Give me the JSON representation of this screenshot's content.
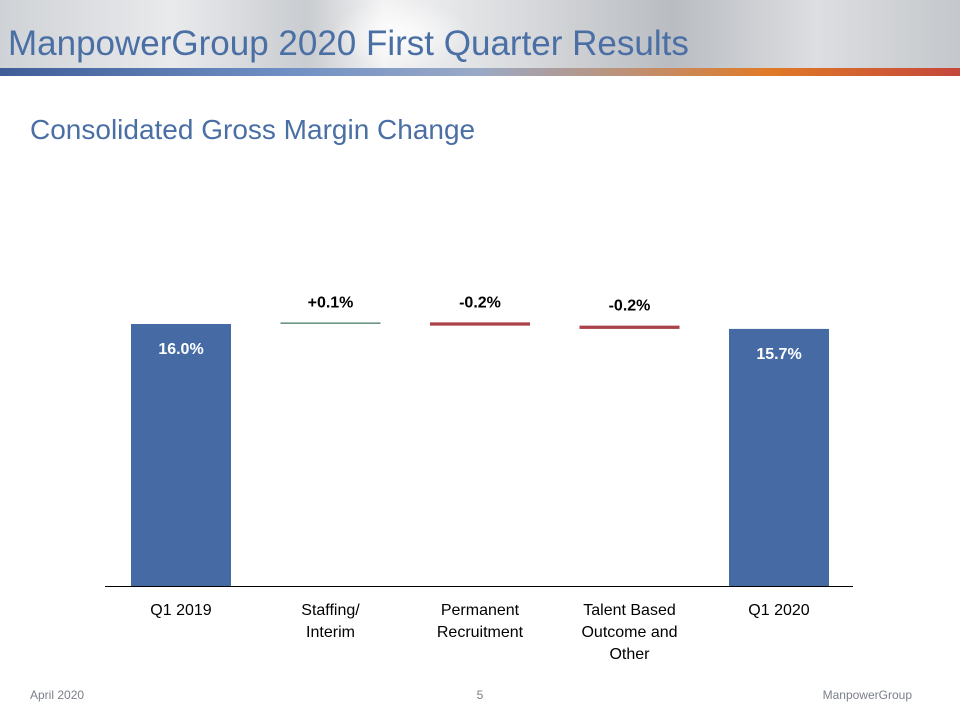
{
  "slide": {
    "title": "ManpowerGroup 2020 First Quarter Results",
    "subtitle": "Consolidated Gross Margin Change"
  },
  "footer": {
    "date": "April 2020",
    "page_number": "5",
    "company": "ManpowerGroup"
  },
  "colors": {
    "title": "#4a6fa5",
    "total_bar": "#466ba4",
    "increase_bar": "#6f9583",
    "decrease_bar": "#ab4149"
  },
  "chart_data": {
    "type": "bar",
    "subtype": "waterfall",
    "categories": [
      [
        "Q1 2019"
      ],
      [
        "Staffing/",
        "Interim"
      ],
      [
        "Permanent",
        "Recruitment"
      ],
      [
        "Talent Based",
        "Outcome and",
        "Other"
      ],
      [
        "Q1 2020"
      ]
    ],
    "values": [
      16.0,
      0.1,
      -0.2,
      -0.2,
      15.7
    ],
    "labels": [
      "16.0%",
      "+0.1%",
      "-0.2%",
      "-0.2%",
      "15.7%"
    ],
    "bar_kinds": [
      "total",
      "increase",
      "decrease",
      "decrease",
      "total"
    ],
    "unit": "%",
    "grid": false,
    "legend": "none"
  }
}
